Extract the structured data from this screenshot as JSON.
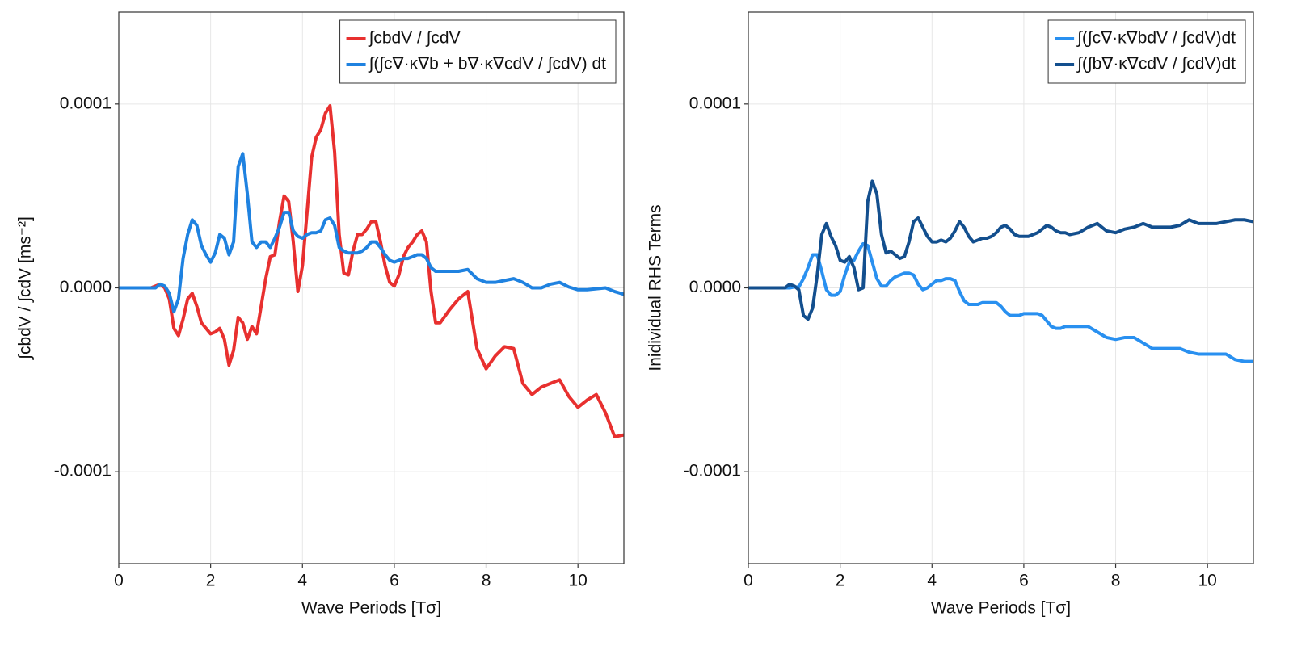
{
  "chart_data": [
    {
      "type": "line",
      "x_label": "Wave Periods [Tσ]",
      "y_label": "∫cbdV / ∫cdV [ms⁻²]",
      "xlim": [
        0,
        11
      ],
      "ylim": [
        -0.00015,
        0.00015
      ],
      "xticks": [
        0,
        2,
        4,
        6,
        8,
        10
      ],
      "yticks": [
        -0.0001,
        {
          "value": 0,
          "label": "0.0000"
        },
        0.0001
      ],
      "grid": true,
      "legend": "top-right",
      "x": [
        0,
        0.1,
        0.2,
        0.3,
        0.4,
        0.5,
        0.6,
        0.7,
        0.8,
        0.9,
        1,
        1.1,
        1.2,
        1.3,
        1.4,
        1.5,
        1.6,
        1.7,
        1.8,
        1.9,
        2,
        2.1,
        2.2,
        2.3,
        2.4,
        2.5,
        2.6,
        2.7,
        2.8,
        2.9,
        3,
        3.1,
        3.2,
        3.3,
        3.4,
        3.5,
        3.6,
        3.7,
        3.8,
        3.9,
        4,
        4.1,
        4.2,
        4.3,
        4.4,
        4.5,
        4.6,
        4.7,
        4.8,
        4.9,
        5,
        5.1,
        5.2,
        5.3,
        5.4,
        5.5,
        5.6,
        5.7,
        5.8,
        5.9,
        6,
        6.1,
        6.2,
        6.3,
        6.4,
        6.5,
        6.6,
        6.7,
        6.8,
        6.9,
        7,
        7.2,
        7.4,
        7.6,
        7.8,
        8,
        8.2,
        8.4,
        8.6,
        8.8,
        9,
        9.2,
        9.4,
        9.6,
        9.8,
        10,
        10.2,
        10.4,
        10.6,
        10.8,
        11
      ],
      "series": [
        {
          "name": "∫cbdV / ∫cdV",
          "color": "#e8302f",
          "values": [
            0,
            0,
            0,
            0,
            0,
            0,
            0,
            0,
            1e-06,
            2e-06,
            0,
            -6e-06,
            -2.2e-05,
            -2.6e-05,
            -1.7e-05,
            -6e-06,
            -3e-06,
            -1e-05,
            -1.9e-05,
            -2.2e-05,
            -2.5e-05,
            -2.4e-05,
            -2.2e-05,
            -2.8e-05,
            -4.2e-05,
            -3.4e-05,
            -1.6e-05,
            -1.9e-05,
            -2.8e-05,
            -2.1e-05,
            -2.5e-05,
            -1e-05,
            5e-06,
            1.7e-05,
            1.8e-05,
            3.6e-05,
            5e-05,
            4.7e-05,
            2.5e-05,
            -2e-06,
            1.2e-05,
            4.1e-05,
            7.1e-05,
            8.2e-05,
            8.6e-05,
            9.5e-05,
            9.9e-05,
            7.4e-05,
            2.9e-05,
            8e-06,
            7e-06,
            2e-05,
            2.9e-05,
            2.9e-05,
            3.2e-05,
            3.6e-05,
            3.6e-05,
            2.5e-05,
            1.2e-05,
            3e-06,
            1e-06,
            7e-06,
            1.7e-05,
            2.2e-05,
            2.5e-05,
            2.9e-05,
            3.1e-05,
            2.5e-05,
            -2e-06,
            -1.9e-05,
            -1.9e-05,
            -1.2e-05,
            -6e-06,
            -2e-06,
            -3.3e-05,
            -4.4e-05,
            -3.7e-05,
            -3.2e-05,
            -3.3e-05,
            -5.2e-05,
            -5.8e-05,
            -5.4e-05,
            -5.2e-05,
            -5e-05,
            -5.9e-05,
            -6.5e-05,
            -6.1e-05,
            -5.8e-05,
            -6.8e-05,
            -8.1e-05,
            -8e-05
          ]
        },
        {
          "name": "∫(∫c∇·κ∇b + b∇·κ∇cdV / ∫cdV) dt",
          "color": "#1f82e0",
          "values": [
            0,
            0,
            0,
            0,
            0,
            0,
            0,
            0,
            0,
            2e-06,
            1e-06,
            -3e-06,
            -1.3e-05,
            -6e-06,
            1.6e-05,
            2.9e-05,
            3.7e-05,
            3.4e-05,
            2.3e-05,
            1.8e-05,
            1.4e-05,
            1.9e-05,
            2.9e-05,
            2.7e-05,
            1.8e-05,
            2.5e-05,
            6.6e-05,
            7.3e-05,
            5.1e-05,
            2.5e-05,
            2.2e-05,
            2.5e-05,
            2.5e-05,
            2.2e-05,
            2.7e-05,
            3.3e-05,
            4.1e-05,
            4.1e-05,
            3.1e-05,
            2.8e-05,
            2.7e-05,
            2.9e-05,
            3e-05,
            3e-05,
            3.1e-05,
            3.7e-05,
            3.8e-05,
            3.4e-05,
            2.2e-05,
            2e-05,
            1.9e-05,
            1.9e-05,
            1.9e-05,
            2e-05,
            2.2e-05,
            2.5e-05,
            2.5e-05,
            2.2e-05,
            1.8e-05,
            1.5e-05,
            1.4e-05,
            1.5e-05,
            1.6e-05,
            1.6e-05,
            1.7e-05,
            1.8e-05,
            1.8e-05,
            1.6e-05,
            1.1e-05,
            9e-06,
            9e-06,
            9e-06,
            9e-06,
            1e-05,
            5e-06,
            3e-06,
            3e-06,
            4e-06,
            5e-06,
            3e-06,
            0,
            0,
            2e-06,
            3e-06,
            5e-07,
            -1e-06,
            -1e-06,
            -5e-07,
            0,
            -2e-06,
            -3.5e-06
          ]
        }
      ]
    },
    {
      "type": "line",
      "x_label": "Wave Periods [Tσ]",
      "y_label": "Inidividual RHS Terms",
      "xlim": [
        0,
        11
      ],
      "ylim": [
        -0.00015,
        0.00015
      ],
      "xticks": [
        0,
        2,
        4,
        6,
        8,
        10
      ],
      "yticks": [
        -0.0001,
        {
          "value": 0,
          "label": "0.0000"
        },
        0.0001
      ],
      "grid": true,
      "legend": "top-right",
      "x": [
        0,
        0.1,
        0.2,
        0.3,
        0.4,
        0.5,
        0.6,
        0.7,
        0.8,
        0.9,
        1,
        1.1,
        1.2,
        1.3,
        1.4,
        1.5,
        1.6,
        1.7,
        1.8,
        1.9,
        2,
        2.1,
        2.2,
        2.3,
        2.4,
        2.5,
        2.6,
        2.7,
        2.8,
        2.9,
        3,
        3.1,
        3.2,
        3.3,
        3.4,
        3.5,
        3.6,
        3.7,
        3.8,
        3.9,
        4,
        4.1,
        4.2,
        4.3,
        4.4,
        4.5,
        4.6,
        4.7,
        4.8,
        4.9,
        5,
        5.1,
        5.2,
        5.3,
        5.4,
        5.5,
        5.6,
        5.7,
        5.8,
        5.9,
        6,
        6.1,
        6.2,
        6.3,
        6.4,
        6.5,
        6.6,
        6.7,
        6.8,
        6.9,
        7,
        7.2,
        7.4,
        7.6,
        7.8,
        8,
        8.2,
        8.4,
        8.6,
        8.8,
        9,
        9.2,
        9.4,
        9.6,
        9.8,
        10,
        10.2,
        10.4,
        10.6,
        10.8,
        11
      ],
      "series": [
        {
          "name": "∫(∫c∇·κ∇bdV / ∫cdV)dt",
          "color": "#2990f0",
          "values": [
            0,
            0,
            0,
            0,
            0,
            0,
            0,
            0,
            0,
            0,
            5e-07,
            5e-07,
            5e-06,
            1.1e-05,
            1.8e-05,
            1.8e-05,
            9e-06,
            -1e-06,
            -4e-06,
            -4e-06,
            -2e-06,
            7e-06,
            1.4e-05,
            1.5e-05,
            2e-05,
            2.4e-05,
            2.3e-05,
            1.4e-05,
            5e-06,
            1e-06,
            1e-06,
            4e-06,
            6e-06,
            7e-06,
            8e-06,
            8e-06,
            7e-06,
            2e-06,
            -1e-06,
            0,
            2e-06,
            4e-06,
            4e-06,
            5e-06,
            5e-06,
            4e-06,
            -2e-06,
            -7e-06,
            -9e-06,
            -9e-06,
            -9e-06,
            -8e-06,
            -8e-06,
            -8e-06,
            -8e-06,
            -1e-05,
            -1.3e-05,
            -1.5e-05,
            -1.5e-05,
            -1.5e-05,
            -1.4e-05,
            -1.4e-05,
            -1.4e-05,
            -1.4e-05,
            -1.5e-05,
            -1.8e-05,
            -2.1e-05,
            -2.2e-05,
            -2.2e-05,
            -2.1e-05,
            -2.1e-05,
            -2.1e-05,
            -2.1e-05,
            -2.4e-05,
            -2.7e-05,
            -2.8e-05,
            -2.7e-05,
            -2.7e-05,
            -3e-05,
            -3.3e-05,
            -3.3e-05,
            -3.3e-05,
            -3.3e-05,
            -3.5e-05,
            -3.6e-05,
            -3.6e-05,
            -3.6e-05,
            -3.6e-05,
            -3.9e-05,
            -4e-05,
            -4e-05
          ]
        },
        {
          "name": "∫(∫b∇·κ∇cdV / ∫cdV)dt",
          "color": "#134f8e",
          "values": [
            0,
            0,
            0,
            0,
            0,
            0,
            0,
            0,
            0,
            2e-06,
            1e-06,
            -1e-06,
            -1.5e-05,
            -1.7e-05,
            -1.1e-05,
            7e-06,
            2.9e-05,
            3.5e-05,
            2.8e-05,
            2.3e-05,
            1.5e-05,
            1.4e-05,
            1.7e-05,
            1.1e-05,
            -1e-06,
            0,
            4.7e-05,
            5.8e-05,
            5.1e-05,
            2.9e-05,
            1.9e-05,
            2e-05,
            1.8e-05,
            1.6e-05,
            1.7e-05,
            2.5e-05,
            3.6e-05,
            3.8e-05,
            3.3e-05,
            2.8e-05,
            2.5e-05,
            2.5e-05,
            2.6e-05,
            2.5e-05,
            2.7e-05,
            3.1e-05,
            3.6e-05,
            3.3e-05,
            2.8e-05,
            2.5e-05,
            2.6e-05,
            2.7e-05,
            2.7e-05,
            2.8e-05,
            3e-05,
            3.3e-05,
            3.4e-05,
            3.2e-05,
            2.9e-05,
            2.8e-05,
            2.8e-05,
            2.8e-05,
            2.9e-05,
            3e-05,
            3.2e-05,
            3.4e-05,
            3.3e-05,
            3.1e-05,
            3e-05,
            3e-05,
            2.9e-05,
            3e-05,
            3.3e-05,
            3.5e-05,
            3.1e-05,
            3e-05,
            3.2e-05,
            3.3e-05,
            3.5e-05,
            3.3e-05,
            3.3e-05,
            3.3e-05,
            3.4e-05,
            3.7e-05,
            3.5e-05,
            3.5e-05,
            3.5e-05,
            3.6e-05,
            3.7e-05,
            3.7e-05,
            3.6e-05
          ]
        }
      ]
    }
  ]
}
